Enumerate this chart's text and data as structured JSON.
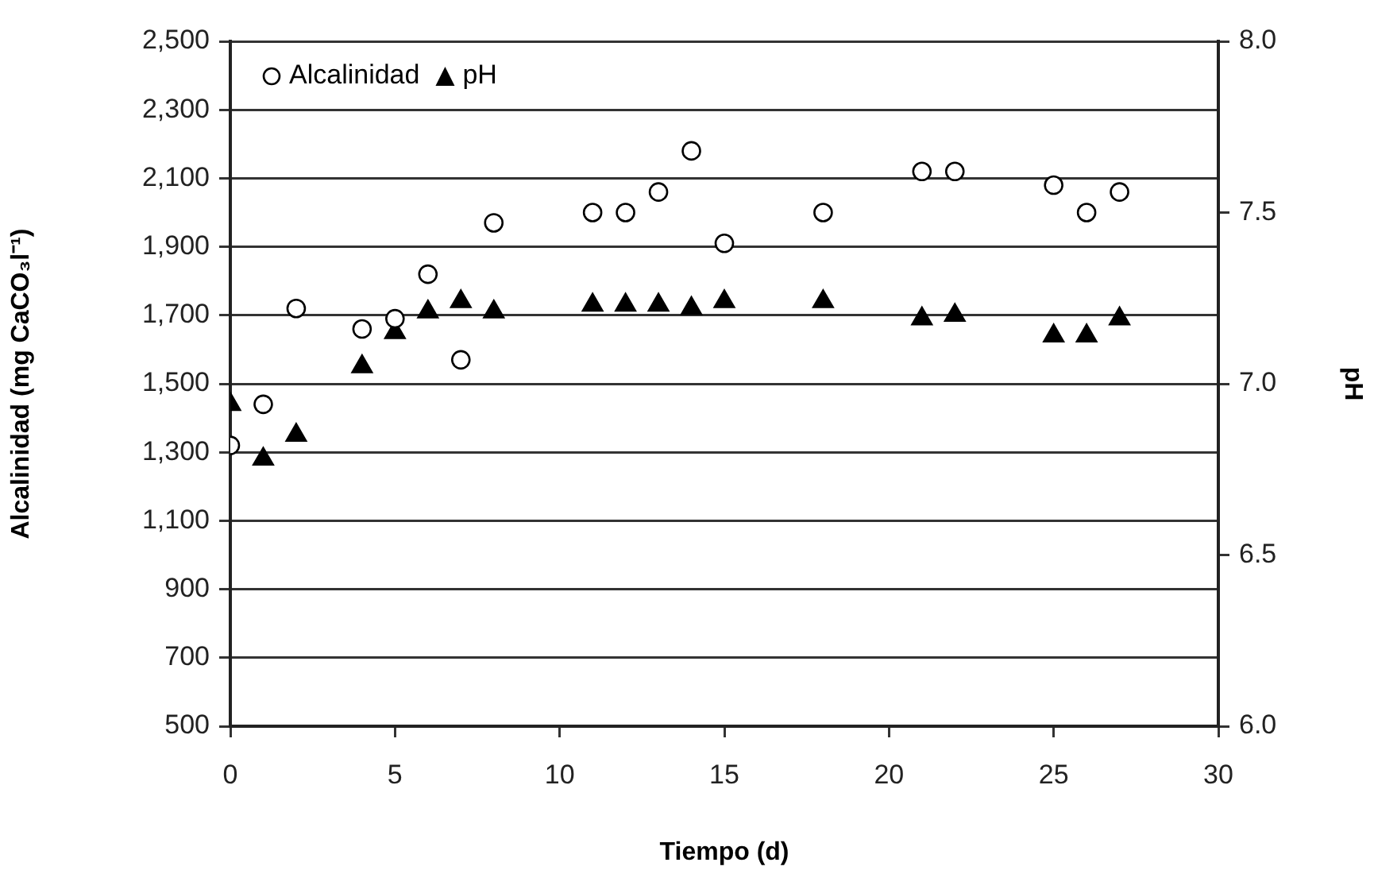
{
  "chart_data": {
    "type": "scatter",
    "xlabel": "Tiempo (d)",
    "ylabel": "Alcalinidad (mg CaCO₃l⁻¹)",
    "y2label": "pH",
    "x": [
      0,
      1,
      2,
      4,
      5,
      6,
      7,
      8,
      11,
      12,
      13,
      14,
      15,
      18,
      21,
      22,
      25,
      26,
      27
    ],
    "series": [
      {
        "name": "Alcalinidad",
        "color": "#000000",
        "marker": "circle",
        "values": [
          1320,
          1440,
          1720,
          1660,
          1690,
          1820,
          1570,
          1970,
          2000,
          2000,
          2060,
          2180,
          1910,
          2000,
          2120,
          2120,
          2080,
          2000,
          2060
        ]
      },
      {
        "name": "pH",
        "color": "#000000",
        "marker": "triangle",
        "axis": "y2",
        "values": [
          6.94,
          6.78,
          6.85,
          7.05,
          7.15,
          7.21,
          7.24,
          7.21,
          7.23,
          7.23,
          7.23,
          7.22,
          7.24,
          7.24,
          7.19,
          7.2,
          7.14,
          7.14,
          7.19
        ]
      }
    ],
    "xlim": [
      0,
      30
    ],
    "xticks": [
      0,
      5,
      10,
      15,
      20,
      25,
      30
    ],
    "ylim": [
      500,
      2500
    ],
    "yticks": [
      {
        "value": 500,
        "label": "500"
      },
      {
        "value": 700,
        "label": "700"
      },
      {
        "value": 900,
        "label": "900"
      },
      {
        "value": 1100,
        "label": "1,100"
      },
      {
        "value": 1300,
        "label": "1,300"
      },
      {
        "value": 1500,
        "label": "1,500"
      },
      {
        "value": 1700,
        "label": "1,700"
      },
      {
        "value": 1900,
        "label": "1,900"
      },
      {
        "value": 2100,
        "label": "2,100"
      },
      {
        "value": 2300,
        "label": "2,300"
      },
      {
        "value": 2500,
        "label": "2,500"
      }
    ],
    "y2lim": [
      6,
      8
    ],
    "y2ticks": [
      {
        "value": 6,
        "label": "6.0"
      },
      {
        "value": 6.5,
        "label": "6.5"
      },
      {
        "value": 7,
        "label": "7.0"
      },
      {
        "value": 7.5,
        "label": "7.5"
      },
      {
        "value": 8,
        "label": "8.0"
      }
    ],
    "grid": "y",
    "legend": "top left"
  }
}
